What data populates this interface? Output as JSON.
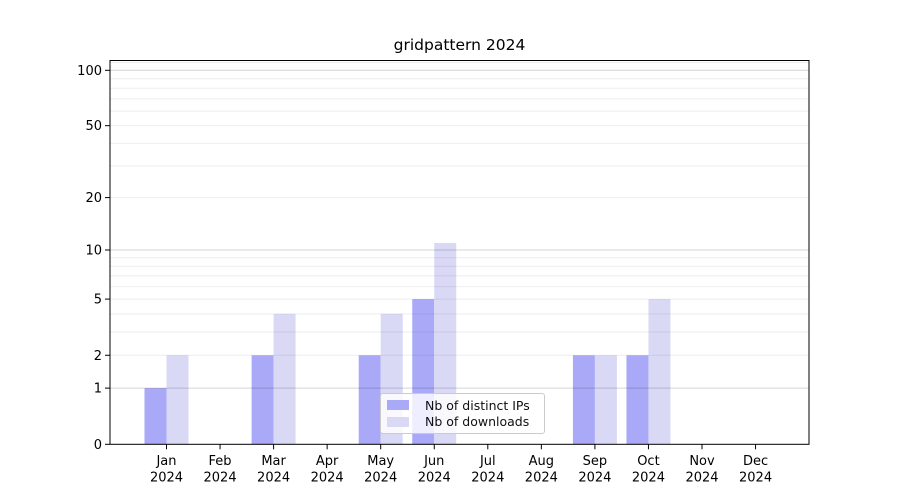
{
  "chart_data": {
    "type": "bar",
    "title": "gridpattern 2024",
    "xlabel": "",
    "ylabel": "",
    "categories": [
      "Jan",
      "Feb",
      "Mar",
      "Apr",
      "May",
      "Jun",
      "Jul",
      "Aug",
      "Sep",
      "Oct",
      "Nov",
      "Dec"
    ],
    "year": "2024",
    "series": [
      {
        "name": "Nb of distinct IPs",
        "color": "#a9a9f7",
        "values": [
          1,
          0,
          2,
          0,
          2,
          5,
          0,
          0,
          2,
          2,
          0,
          0
        ]
      },
      {
        "name": "Nb of downloads",
        "color": "#d9d9f6",
        "values": [
          2,
          0,
          4,
          0,
          4,
          11,
          0,
          0,
          2,
          5,
          0,
          0
        ]
      }
    ],
    "yscale": "log1p",
    "ylim": [
      0,
      113
    ],
    "yticks": [
      0,
      1,
      2,
      5,
      10,
      20,
      50,
      100
    ],
    "major_gridlines": [
      1,
      10,
      100
    ],
    "minor_gridlines": [
      2,
      3,
      4,
      5,
      6,
      7,
      8,
      9,
      20,
      30,
      40,
      50,
      60,
      70,
      80,
      90,
      110
    ],
    "grid": true,
    "legend_position": "lower center",
    "colors": {
      "axis": "#000000",
      "tick_label": "#000000",
      "major_grid": "rgba(0,0,0,0.17)",
      "minor_grid": "rgba(0,0,0,0.07)"
    }
  }
}
